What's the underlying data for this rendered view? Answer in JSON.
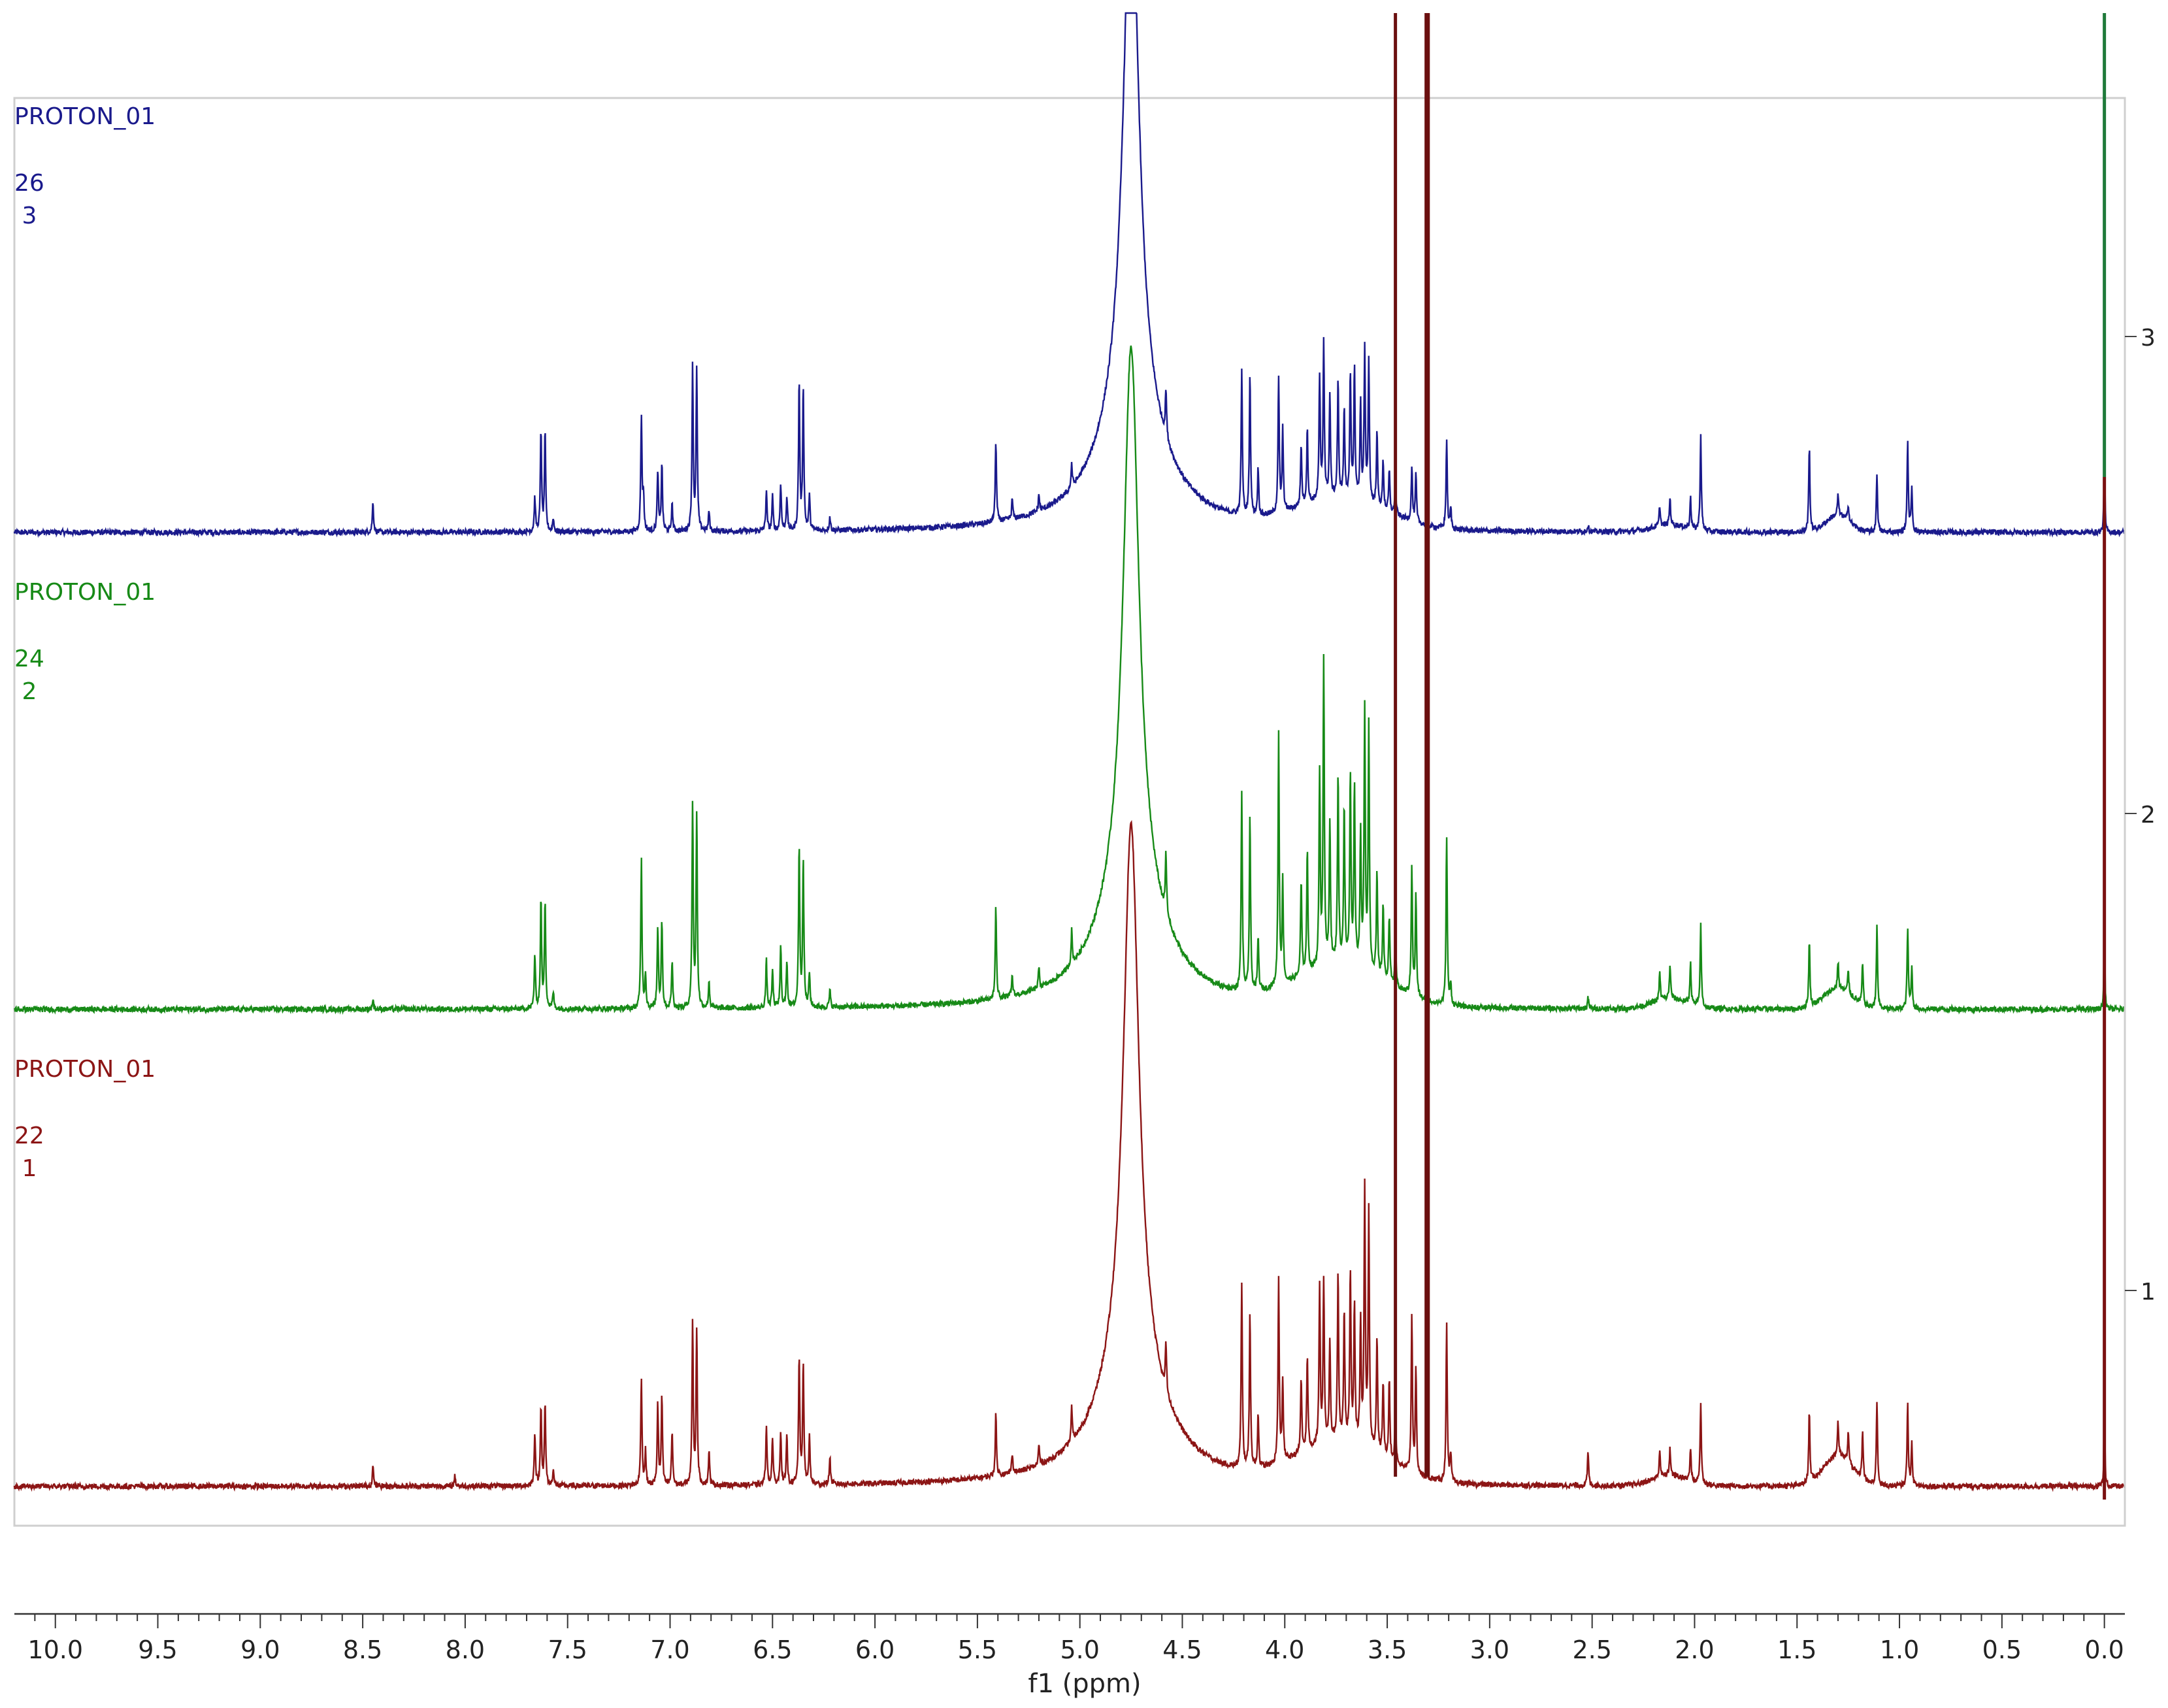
{
  "chart_data": {
    "type": "line",
    "title": "",
    "xlabel": "f1 (ppm)",
    "ylabel": "",
    "xlim": [
      10.2,
      -0.1
    ],
    "x_reversed": true,
    "x_ticks": [
      "10.0",
      "9.5",
      "9.0",
      "8.5",
      "8.0",
      "7.5",
      "7.0",
      "6.5",
      "6.0",
      "5.5",
      "5.0",
      "4.5",
      "4.0",
      "3.5",
      "3.0",
      "2.5",
      "2.0",
      "1.5",
      "1.0",
      "0.5",
      "0.0"
    ],
    "y_ticks": [
      "3",
      "2",
      "1"
    ],
    "grid": false,
    "legend": "top-left per trace",
    "series": [
      {
        "name": "PROTON_01",
        "label_line2": "26",
        "label_line3": " 3",
        "index": 3,
        "color": "#1a1a8c",
        "peaks": [
          {
            "x": 8.45,
            "h": 0.09
          },
          {
            "x": 7.66,
            "h": 0.1
          },
          {
            "x": 7.63,
            "h": 0.3
          },
          {
            "x": 7.61,
            "h": 0.29
          },
          {
            "x": 7.57,
            "h": 0.04
          },
          {
            "x": 7.14,
            "h": 0.34
          },
          {
            "x": 7.13,
            "h": 0.1
          },
          {
            "x": 7.06,
            "h": 0.18
          },
          {
            "x": 7.04,
            "h": 0.2
          },
          {
            "x": 6.99,
            "h": 0.08
          },
          {
            "x": 6.89,
            "h": 0.48
          },
          {
            "x": 6.87,
            "h": 0.47
          },
          {
            "x": 6.81,
            "h": 0.06
          },
          {
            "x": 6.53,
            "h": 0.12
          },
          {
            "x": 6.5,
            "h": 0.1
          },
          {
            "x": 6.46,
            "h": 0.14
          },
          {
            "x": 6.43,
            "h": 0.1
          },
          {
            "x": 6.37,
            "h": 0.44
          },
          {
            "x": 6.35,
            "h": 0.42
          },
          {
            "x": 6.32,
            "h": 0.1
          },
          {
            "x": 6.22,
            "h": 0.04
          },
          {
            "x": 5.41,
            "h": 0.24
          },
          {
            "x": 5.33,
            "h": 0.06
          },
          {
            "x": 5.2,
            "h": 0.05
          },
          {
            "x": 5.04,
            "h": 0.07
          },
          {
            "x": 4.58,
            "h": 0.14
          },
          {
            "x": 4.21,
            "h": 0.42
          },
          {
            "x": 4.17,
            "h": 0.42
          },
          {
            "x": 4.13,
            "h": 0.14
          },
          {
            "x": 4.03,
            "h": 0.4
          },
          {
            "x": 4.01,
            "h": 0.24
          },
          {
            "x": 3.92,
            "h": 0.18
          },
          {
            "x": 3.89,
            "h": 0.22
          },
          {
            "x": 3.83,
            "h": 0.36
          },
          {
            "x": 3.81,
            "h": 0.46
          },
          {
            "x": 3.78,
            "h": 0.3
          },
          {
            "x": 3.74,
            "h": 0.34
          },
          {
            "x": 3.71,
            "h": 0.26
          },
          {
            "x": 3.68,
            "h": 0.36
          },
          {
            "x": 3.66,
            "h": 0.38
          },
          {
            "x": 3.63,
            "h": 0.28
          },
          {
            "x": 3.61,
            "h": 0.44
          },
          {
            "x": 3.59,
            "h": 0.42
          },
          {
            "x": 3.55,
            "h": 0.22
          },
          {
            "x": 3.52,
            "h": 0.14
          },
          {
            "x": 3.49,
            "h": 0.12
          },
          {
            "x": 3.46,
            "h": 0.1
          },
          {
            "x": 3.38,
            "h": 0.16
          },
          {
            "x": 3.36,
            "h": 0.14
          },
          {
            "x": 3.21,
            "h": 0.26
          },
          {
            "x": 3.19,
            "h": 0.06
          },
          {
            "x": 2.52,
            "h": 0.02
          },
          {
            "x": 2.17,
            "h": 0.06
          },
          {
            "x": 2.12,
            "h": 0.08
          },
          {
            "x": 2.02,
            "h": 0.09
          },
          {
            "x": 1.97,
            "h": 0.28
          },
          {
            "x": 1.44,
            "h": 0.25
          },
          {
            "x": 1.3,
            "h": 0.06
          },
          {
            "x": 1.25,
            "h": 0.05
          },
          {
            "x": 1.11,
            "h": 0.17
          },
          {
            "x": 0.96,
            "h": 0.26
          },
          {
            "x": 0.94,
            "h": 0.13
          }
        ],
        "humps": [
          {
            "x": 3.72,
            "h": 0.09,
            "w": 0.3
          },
          {
            "x": 1.3,
            "h": 0.05,
            "w": 0.08
          },
          {
            "x": 2.12,
            "h": 0.02,
            "w": 0.12
          }
        ]
      },
      {
        "name": "PROTON_01",
        "label_line2": "24",
        "label_line3": " 2",
        "index": 2,
        "color": "#178a17",
        "peaks": [
          {
            "x": 8.45,
            "h": 0.03
          },
          {
            "x": 7.66,
            "h": 0.16
          },
          {
            "x": 7.63,
            "h": 0.32
          },
          {
            "x": 7.61,
            "h": 0.32
          },
          {
            "x": 7.57,
            "h": 0.05
          },
          {
            "x": 7.14,
            "h": 0.44
          },
          {
            "x": 7.12,
            "h": 0.1
          },
          {
            "x": 7.06,
            "h": 0.24
          },
          {
            "x": 7.04,
            "h": 0.26
          },
          {
            "x": 6.99,
            "h": 0.14
          },
          {
            "x": 6.89,
            "h": 0.6
          },
          {
            "x": 6.87,
            "h": 0.57
          },
          {
            "x": 6.81,
            "h": 0.08
          },
          {
            "x": 6.53,
            "h": 0.14
          },
          {
            "x": 6.5,
            "h": 0.11
          },
          {
            "x": 6.46,
            "h": 0.18
          },
          {
            "x": 6.43,
            "h": 0.14
          },
          {
            "x": 6.37,
            "h": 0.48
          },
          {
            "x": 6.35,
            "h": 0.44
          },
          {
            "x": 6.32,
            "h": 0.1
          },
          {
            "x": 6.22,
            "h": 0.05
          },
          {
            "x": 5.41,
            "h": 0.27
          },
          {
            "x": 5.33,
            "h": 0.06
          },
          {
            "x": 5.2,
            "h": 0.06
          },
          {
            "x": 5.04,
            "h": 0.1
          },
          {
            "x": 4.58,
            "h": 0.18
          },
          {
            "x": 4.21,
            "h": 0.58
          },
          {
            "x": 4.17,
            "h": 0.52
          },
          {
            "x": 4.13,
            "h": 0.16
          },
          {
            "x": 4.03,
            "h": 0.74
          },
          {
            "x": 4.01,
            "h": 0.3
          },
          {
            "x": 3.92,
            "h": 0.28
          },
          {
            "x": 3.89,
            "h": 0.36
          },
          {
            "x": 3.83,
            "h": 0.56
          },
          {
            "x": 3.81,
            "h": 0.9
          },
          {
            "x": 3.78,
            "h": 0.42
          },
          {
            "x": 3.74,
            "h": 0.56
          },
          {
            "x": 3.71,
            "h": 0.46
          },
          {
            "x": 3.68,
            "h": 0.56
          },
          {
            "x": 3.66,
            "h": 0.52
          },
          {
            "x": 3.63,
            "h": 0.38
          },
          {
            "x": 3.61,
            "h": 0.76
          },
          {
            "x": 3.59,
            "h": 0.72
          },
          {
            "x": 3.55,
            "h": 0.3
          },
          {
            "x": 3.52,
            "h": 0.22
          },
          {
            "x": 3.49,
            "h": 0.2
          },
          {
            "x": 3.46,
            "h": 0.14
          },
          {
            "x": 3.38,
            "h": 0.38
          },
          {
            "x": 3.36,
            "h": 0.3
          },
          {
            "x": 3.21,
            "h": 0.5
          },
          {
            "x": 3.19,
            "h": 0.06
          },
          {
            "x": 2.52,
            "h": 0.03
          },
          {
            "x": 2.17,
            "h": 0.08
          },
          {
            "x": 2.12,
            "h": 0.1
          },
          {
            "x": 2.02,
            "h": 0.12
          },
          {
            "x": 1.97,
            "h": 0.24
          },
          {
            "x": 1.44,
            "h": 0.19
          },
          {
            "x": 1.3,
            "h": 0.08
          },
          {
            "x": 1.25,
            "h": 0.07
          },
          {
            "x": 1.18,
            "h": 0.12
          },
          {
            "x": 1.11,
            "h": 0.24
          },
          {
            "x": 0.96,
            "h": 0.24
          },
          {
            "x": 0.94,
            "h": 0.12
          }
        ],
        "humps": [
          {
            "x": 3.72,
            "h": 0.12,
            "w": 0.3
          },
          {
            "x": 1.3,
            "h": 0.06,
            "w": 0.1
          },
          {
            "x": 2.12,
            "h": 0.03,
            "w": 0.12
          }
        ]
      },
      {
        "name": "PROTON_01",
        "label_line2": "22",
        "label_line3": " 1",
        "index": 1,
        "color": "#8c1515",
        "peaks": [
          {
            "x": 8.45,
            "h": 0.06
          },
          {
            "x": 8.05,
            "h": 0.03
          },
          {
            "x": 7.66,
            "h": 0.16
          },
          {
            "x": 7.63,
            "h": 0.24
          },
          {
            "x": 7.61,
            "h": 0.24
          },
          {
            "x": 7.57,
            "h": 0.05
          },
          {
            "x": 7.14,
            "h": 0.32
          },
          {
            "x": 7.12,
            "h": 0.1
          },
          {
            "x": 7.06,
            "h": 0.24
          },
          {
            "x": 7.04,
            "h": 0.26
          },
          {
            "x": 6.99,
            "h": 0.16
          },
          {
            "x": 6.89,
            "h": 0.48
          },
          {
            "x": 6.87,
            "h": 0.46
          },
          {
            "x": 6.81,
            "h": 0.1
          },
          {
            "x": 6.53,
            "h": 0.18
          },
          {
            "x": 6.5,
            "h": 0.14
          },
          {
            "x": 6.46,
            "h": 0.16
          },
          {
            "x": 6.43,
            "h": 0.14
          },
          {
            "x": 6.37,
            "h": 0.38
          },
          {
            "x": 6.35,
            "h": 0.36
          },
          {
            "x": 6.32,
            "h": 0.14
          },
          {
            "x": 6.22,
            "h": 0.08
          },
          {
            "x": 5.41,
            "h": 0.18
          },
          {
            "x": 5.33,
            "h": 0.06
          },
          {
            "x": 5.2,
            "h": 0.06
          },
          {
            "x": 5.04,
            "h": 0.1
          },
          {
            "x": 4.58,
            "h": 0.14
          },
          {
            "x": 4.21,
            "h": 0.54
          },
          {
            "x": 4.17,
            "h": 0.46
          },
          {
            "x": 4.13,
            "h": 0.16
          },
          {
            "x": 4.03,
            "h": 0.54
          },
          {
            "x": 4.01,
            "h": 0.24
          },
          {
            "x": 3.92,
            "h": 0.22
          },
          {
            "x": 3.89,
            "h": 0.28
          },
          {
            "x": 3.83,
            "h": 0.46
          },
          {
            "x": 3.81,
            "h": 0.48
          },
          {
            "x": 3.78,
            "h": 0.3
          },
          {
            "x": 3.74,
            "h": 0.5
          },
          {
            "x": 3.71,
            "h": 0.38
          },
          {
            "x": 3.68,
            "h": 0.5
          },
          {
            "x": 3.66,
            "h": 0.4
          },
          {
            "x": 3.63,
            "h": 0.36
          },
          {
            "x": 3.61,
            "h": 0.76
          },
          {
            "x": 3.59,
            "h": 0.7
          },
          {
            "x": 3.55,
            "h": 0.34
          },
          {
            "x": 3.52,
            "h": 0.22
          },
          {
            "x": 3.49,
            "h": 0.24
          },
          {
            "x": 3.46,
            "h": 0.16
          },
          {
            "x": 3.38,
            "h": 0.46
          },
          {
            "x": 3.36,
            "h": 0.3
          },
          {
            "x": 3.21,
            "h": 0.46
          },
          {
            "x": 3.19,
            "h": 0.08
          },
          {
            "x": 2.52,
            "h": 0.1
          },
          {
            "x": 2.17,
            "h": 0.08
          },
          {
            "x": 2.12,
            "h": 0.08
          },
          {
            "x": 2.02,
            "h": 0.1
          },
          {
            "x": 1.97,
            "h": 0.24
          },
          {
            "x": 1.44,
            "h": 0.21
          },
          {
            "x": 1.3,
            "h": 0.1
          },
          {
            "x": 1.25,
            "h": 0.09
          },
          {
            "x": 1.18,
            "h": 0.14
          },
          {
            "x": 1.11,
            "h": 0.25
          },
          {
            "x": 0.96,
            "h": 0.24
          },
          {
            "x": 0.94,
            "h": 0.12
          }
        ],
        "humps": [
          {
            "x": 3.72,
            "h": 0.12,
            "w": 0.3
          },
          {
            "x": 1.3,
            "h": 0.09,
            "w": 0.1
          },
          {
            "x": 2.12,
            "h": 0.03,
            "w": 0.12
          }
        ]
      }
    ],
    "solvent_peak": {
      "x": 4.75
    },
    "tms_peak": {
      "x": 0.0
    },
    "sharp_lines": [
      {
        "x": 3.46,
        "color": "#6b1010"
      },
      {
        "x": 3.31,
        "color": "#6b1010"
      },
      {
        "x": 3.3,
        "color": "#6b1010"
      }
    ]
  }
}
